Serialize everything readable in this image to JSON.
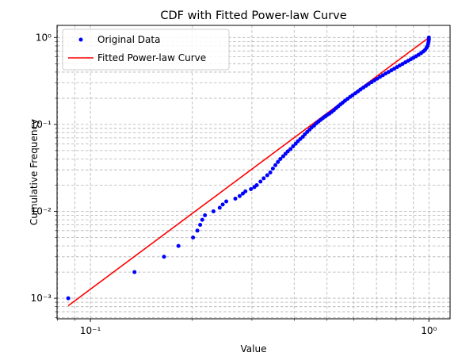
{
  "chart_data": {
    "type": "scatter",
    "title": "CDF with Fitted Power-law Curve",
    "xlabel": "Value",
    "ylabel": "Cumulative Frequency",
    "xscale": "log",
    "yscale": "log",
    "xlim": [
      0.0797,
      1.155
    ],
    "ylim": [
      0.00058,
      1.38
    ],
    "x_major_ticks": [
      0.1,
      1
    ],
    "x_tick_labels": [
      "10⁻¹",
      "10⁰"
    ],
    "y_major_ticks": [
      0.001,
      0.01,
      0.1,
      1
    ],
    "y_tick_labels": [
      "10⁻³",
      "10⁻²",
      "10⁻¹",
      "10⁰"
    ],
    "grid": true,
    "grid_style": "dashed",
    "legend_position": "top-left",
    "colors": {
      "data": "#0000ff",
      "fit": "#ff0000",
      "grid": "#b0b0b0"
    },
    "series": [
      {
        "name": "Original Data",
        "style": "points",
        "color": "#0000ff",
        "points": [
          [
            0.086,
            0.001
          ],
          [
            0.135,
            0.002
          ],
          [
            0.165,
            0.003
          ],
          [
            0.182,
            0.004
          ],
          [
            0.201,
            0.005
          ],
          [
            0.207,
            0.006
          ],
          [
            0.211,
            0.007
          ],
          [
            0.214,
            0.008
          ],
          [
            0.218,
            0.009
          ],
          [
            0.231,
            0.01
          ],
          [
            0.241,
            0.011
          ],
          [
            0.246,
            0.012
          ],
          [
            0.252,
            0.013
          ],
          [
            0.268,
            0.014
          ],
          [
            0.276,
            0.015
          ],
          [
            0.282,
            0.016
          ],
          [
            0.287,
            0.017
          ],
          [
            0.298,
            0.018
          ],
          [
            0.305,
            0.019
          ],
          [
            0.31,
            0.02
          ],
          [
            0.318,
            0.022
          ],
          [
            0.325,
            0.024
          ],
          [
            0.333,
            0.026
          ],
          [
            0.34,
            0.028
          ],
          [
            0.346,
            0.031
          ],
          [
            0.352,
            0.034
          ],
          [
            0.358,
            0.037
          ],
          [
            0.364,
            0.04
          ],
          [
            0.371,
            0.043
          ],
          [
            0.377,
            0.046
          ],
          [
            0.383,
            0.049
          ],
          [
            0.39,
            0.052
          ],
          [
            0.397,
            0.056
          ],
          [
            0.404,
            0.06
          ],
          [
            0.41,
            0.064
          ],
          [
            0.417,
            0.068
          ],
          [
            0.424,
            0.072
          ],
          [
            0.43,
            0.077
          ],
          [
            0.437,
            0.082
          ],
          [
            0.444,
            0.087
          ],
          [
            0.45,
            0.092
          ],
          [
            0.458,
            0.097
          ],
          [
            0.465,
            0.103
          ],
          [
            0.472,
            0.108
          ],
          [
            0.479,
            0.113
          ],
          [
            0.486,
            0.118
          ],
          [
            0.493,
            0.123
          ],
          [
            0.5,
            0.128
          ],
          [
            0.508,
            0.133
          ],
          [
            0.516,
            0.139
          ],
          [
            0.524,
            0.146
          ],
          [
            0.532,
            0.154
          ],
          [
            0.54,
            0.162
          ],
          [
            0.548,
            0.17
          ],
          [
            0.556,
            0.178
          ],
          [
            0.565,
            0.187
          ],
          [
            0.575,
            0.197
          ],
          [
            0.585,
            0.207
          ],
          [
            0.595,
            0.217
          ],
          [
            0.606,
            0.228
          ],
          [
            0.617,
            0.24
          ],
          [
            0.628,
            0.252
          ],
          [
            0.64,
            0.265
          ],
          [
            0.652,
            0.278
          ],
          [
            0.664,
            0.292
          ],
          [
            0.677,
            0.306
          ],
          [
            0.69,
            0.321
          ],
          [
            0.703,
            0.336
          ],
          [
            0.717,
            0.352
          ],
          [
            0.731,
            0.368
          ],
          [
            0.745,
            0.385
          ],
          [
            0.76,
            0.402
          ],
          [
            0.775,
            0.42
          ],
          [
            0.79,
            0.438
          ],
          [
            0.805,
            0.457
          ],
          [
            0.82,
            0.477
          ],
          [
            0.836,
            0.497
          ],
          [
            0.852,
            0.518
          ],
          [
            0.868,
            0.54
          ],
          [
            0.884,
            0.562
          ],
          [
            0.9,
            0.585
          ],
          [
            0.916,
            0.609
          ],
          [
            0.932,
            0.634
          ],
          [
            0.948,
            0.66
          ],
          [
            0.962,
            0.69
          ],
          [
            0.974,
            0.72
          ],
          [
            0.984,
            0.76
          ],
          [
            0.991,
            0.8
          ],
          [
            0.995,
            0.85
          ],
          [
            0.998,
            0.9
          ],
          [
            1.0,
            0.95
          ],
          [
            1.0,
            1.0
          ]
        ]
      },
      {
        "name": "Fitted Power-law Curve",
        "style": "line",
        "color": "#ff0000",
        "points": [
          [
            0.086,
            0.00082
          ],
          [
            1.0,
            1.0
          ]
        ]
      }
    ]
  }
}
